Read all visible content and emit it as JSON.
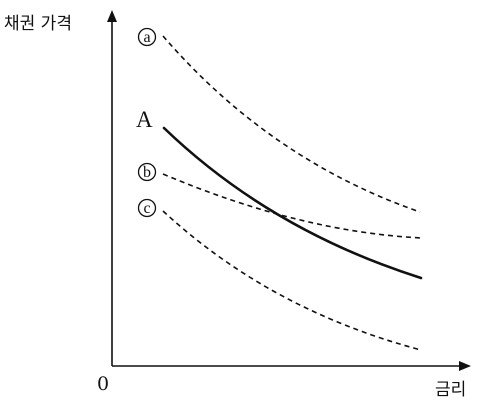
{
  "axes": {
    "y_label": "채권 가격",
    "x_label": "금리",
    "origin_label": "0"
  },
  "curves": [
    {
      "id": "a",
      "label": "ⓐ",
      "style": "dashed"
    },
    {
      "id": "A",
      "label": "A",
      "style": "solid"
    },
    {
      "id": "b",
      "label": "ⓑ",
      "style": "dashed"
    },
    {
      "id": "c",
      "label": "ⓒ",
      "style": "dashed"
    }
  ],
  "colors": {
    "ink": "#111111",
    "background": "#ffffff"
  }
}
